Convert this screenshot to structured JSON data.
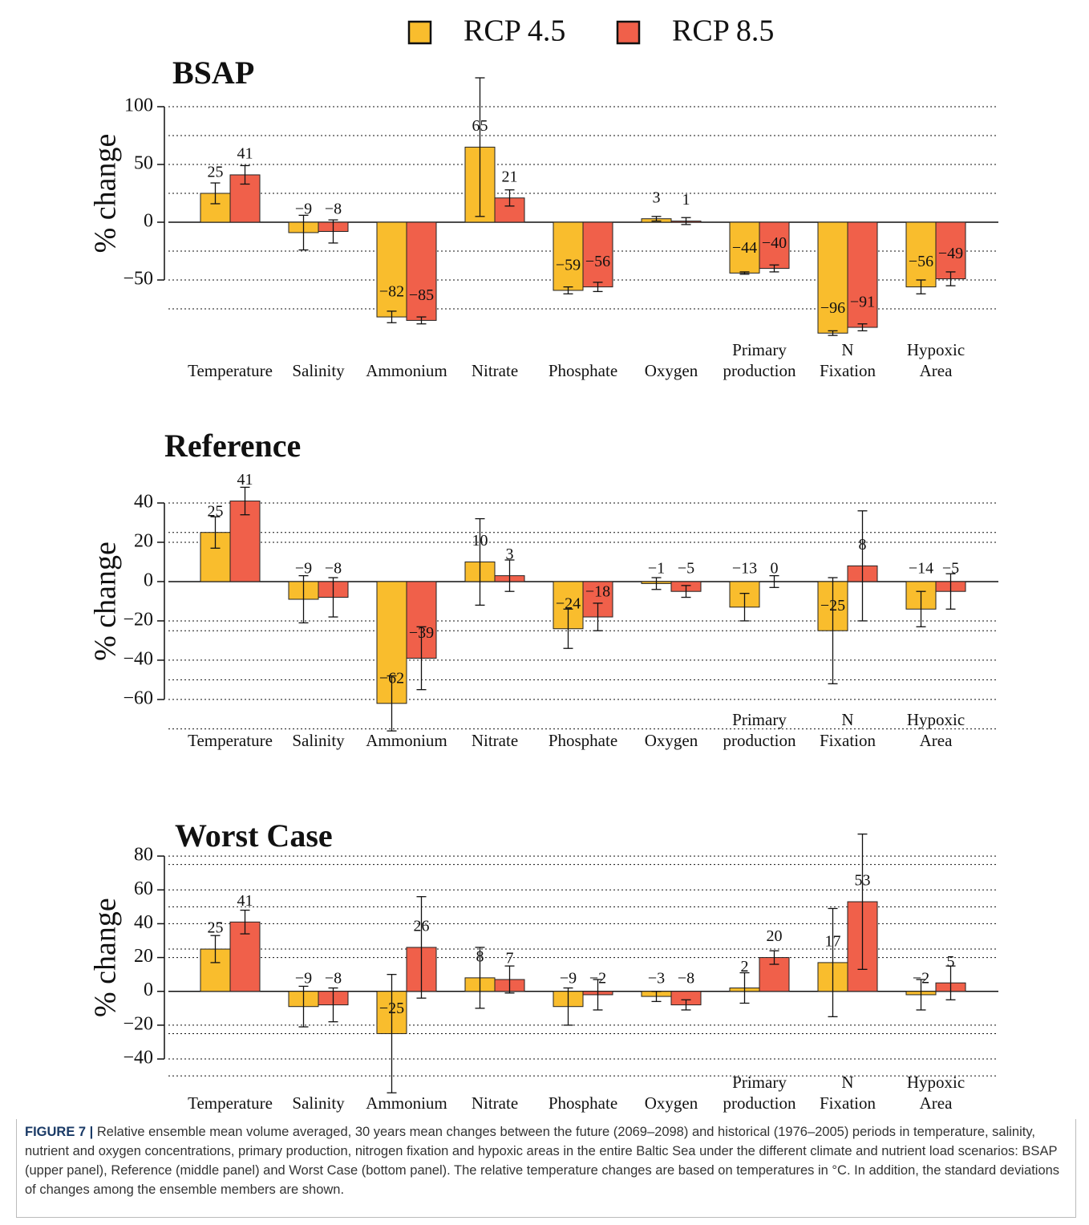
{
  "chart_data": [
    {
      "type": "bar",
      "title": "BSAP",
      "ylabel": "% change",
      "categories": [
        [
          "Temperature"
        ],
        [
          "Salinity"
        ],
        [
          "Ammonium"
        ],
        [
          "Nitrate"
        ],
        [
          "Phosphate"
        ],
        [
          "Oxygen"
        ],
        [
          "Primary",
          "production"
        ],
        [
          "N",
          "Fixation"
        ],
        [
          "Hypoxic",
          "Area"
        ]
      ],
      "series": [
        {
          "name": "RCP 4.5",
          "color": "#f9bd2d",
          "values": [
            25,
            -9,
            -82,
            65,
            -59,
            3,
            -44,
            -96,
            -56
          ],
          "value_labels": [
            "25",
            "−9",
            "−82",
            "65",
            "−59",
            "3",
            "−44",
            "−96",
            "−56"
          ],
          "errors": [
            9,
            15,
            5,
            60,
            3,
            2,
            1,
            2,
            6
          ]
        },
        {
          "name": "RCP 8.5",
          "color": "#f0604a",
          "values": [
            41,
            -8,
            -85,
            21,
            -56,
            1,
            -40,
            -91,
            -49
          ],
          "value_labels": [
            "41",
            "−8",
            "−85",
            "21",
            "−56",
            "1",
            "−40",
            "−91",
            "−49"
          ],
          "errors": [
            8,
            10,
            3,
            7,
            4,
            3,
            3,
            3,
            6
          ]
        }
      ],
      "ylim": [
        -100,
        125
      ],
      "yticks": [
        {
          "value": -50,
          "label": "−50"
        },
        0,
        50,
        100
      ],
      "minor_yticks": [
        -75,
        -25,
        25,
        75
      ],
      "grid": true
    },
    {
      "type": "bar",
      "title": "Reference",
      "ylabel": "% change",
      "categories": [
        [
          "Temperature"
        ],
        [
          "Salinity"
        ],
        [
          "Ammonium"
        ],
        [
          "Nitrate"
        ],
        [
          "Phosphate"
        ],
        [
          "Oxygen"
        ],
        [
          "Primary",
          "production"
        ],
        [
          "N",
          "Fixation"
        ],
        [
          "Hypoxic",
          "Area"
        ]
      ],
      "series": [
        {
          "name": "RCP 4.5",
          "color": "#f9bd2d",
          "values": [
            25,
            -9,
            -62,
            10,
            -24,
            -1,
            -13,
            -25,
            -14
          ],
          "value_labels": [
            "25",
            "−9",
            "−62",
            "10",
            "−24",
            "−1",
            "−13",
            "−25",
            "−14"
          ],
          "errors": [
            8,
            12,
            14,
            22,
            10,
            3,
            7,
            27,
            9
          ]
        },
        {
          "name": "RCP 8.5",
          "color": "#f0604a",
          "values": [
            41,
            -8,
            -39,
            3,
            -18,
            -5,
            0,
            8,
            -5
          ],
          "value_labels": [
            "41",
            "−8",
            "−39",
            "3",
            "−18",
            "−5",
            "0",
            "8",
            "−5"
          ],
          "errors": [
            7,
            10,
            16,
            8,
            7,
            3,
            3,
            28,
            9
          ]
        }
      ],
      "ylim": [
        -78,
        50
      ],
      "yticks": [
        {
          "value": -60,
          "label": "−60"
        },
        {
          "value": -40,
          "label": "−40"
        },
        {
          "value": -20,
          "label": "−20"
        },
        0,
        20,
        40
      ],
      "minor_yticks": [
        -75,
        -50,
        -25,
        25
      ],
      "grid": true
    },
    {
      "type": "bar",
      "title": "Worst Case",
      "ylabel": "% change",
      "categories": [
        [
          "Temperature"
        ],
        [
          "Salinity"
        ],
        [
          "Ammonium"
        ],
        [
          "Nitrate"
        ],
        [
          "Phosphate"
        ],
        [
          "Oxygen"
        ],
        [
          "Primary",
          "production"
        ],
        [
          "N",
          "Fixation"
        ],
        [
          "Hypoxic",
          "Area"
        ]
      ],
      "series": [
        {
          "name": "RCP 4.5",
          "color": "#f9bd2d",
          "values": [
            25,
            -9,
            -25,
            8,
            -9,
            -3,
            2,
            17,
            -2
          ],
          "value_labels": [
            "25",
            "−9",
            "−25",
            "8",
            "−9",
            "−3",
            "2",
            "17",
            "−2"
          ],
          "errors": [
            8,
            12,
            35,
            18,
            11,
            3,
            9,
            32,
            9
          ]
        },
        {
          "name": "RCP 8.5",
          "color": "#f0604a",
          "values": [
            41,
            -8,
            26,
            7,
            -2,
            -8,
            20,
            53,
            5
          ],
          "value_labels": [
            "41",
            "−8",
            "26",
            "7",
            "−2",
            "−8",
            "20",
            "53",
            "5"
          ],
          "errors": [
            7,
            10,
            30,
            8,
            9,
            3,
            4,
            40,
            10
          ]
        }
      ],
      "ylim": [
        -58,
        95
      ],
      "yticks": [
        {
          "value": -40,
          "label": "−40"
        },
        {
          "value": -20,
          "label": "−20"
        },
        0,
        20,
        40,
        60,
        80
      ],
      "minor_yticks": [
        -50,
        -25,
        25,
        50,
        75
      ],
      "grid": true
    }
  ],
  "caption": {
    "label": "FIGURE 7 |",
    "text": "Relative ensemble mean volume averaged, 30 years mean changes between the future (2069–2098) and historical (1976–2005) periods in temperature, salinity, nutrient and oxygen concentrations, primary production, nitrogen fixation and hypoxic areas in the entire Baltic Sea under the different climate and nutrient load scenarios: BSAP (upper panel), Reference (middle panel) and Worst Case (bottom panel). The relative temperature changes are based on temperatures in °C. In addition, the standard deviations of changes among the ensemble members are shown."
  }
}
